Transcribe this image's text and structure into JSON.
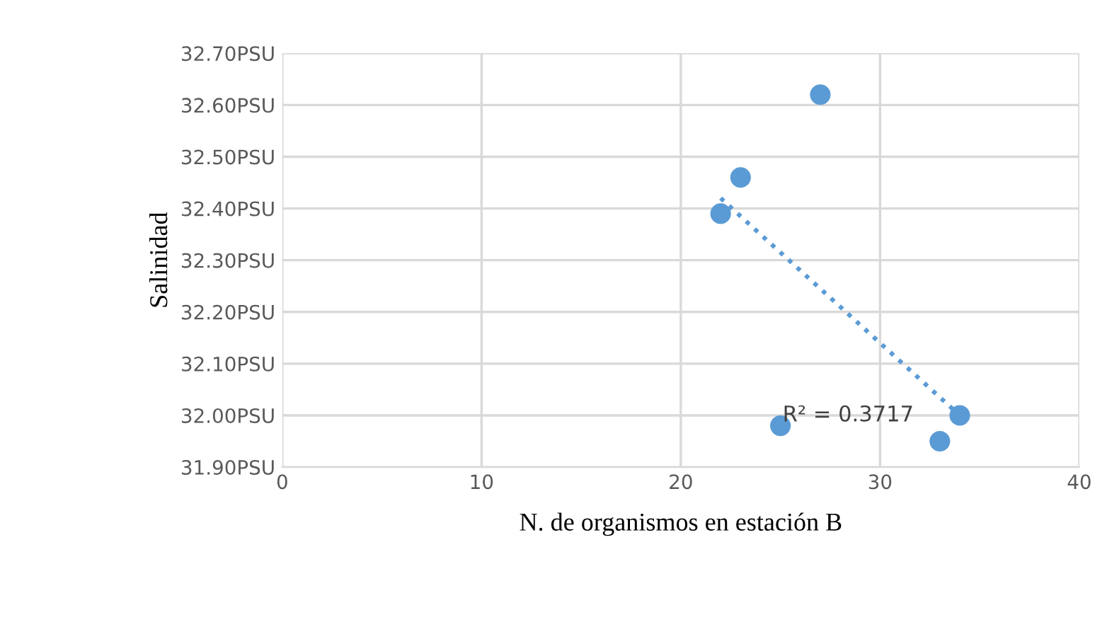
{
  "chart_data": {
    "type": "scatter",
    "xlabel": "N. de organismos en estación B",
    "ylabel": "Salinidad",
    "series": [
      {
        "color": "#5b9bd5",
        "marker": "circle",
        "x": [
          27,
          23,
          22,
          25,
          33,
          34
        ],
        "values": [
          32.62,
          32.46,
          32.39,
          31.98,
          31.95,
          32.0
        ]
      },
      {
        "type": "line",
        "color": "#5b9bd5",
        "line_style": "dotted",
        "marker": "none",
        "x": [
          22,
          34
        ],
        "values": [
          32.42,
          32.0
        ]
      }
    ],
    "annotations": [
      "R² = 0.3717"
    ],
    "xlim": [
      0,
      40
    ],
    "xticks": [
      0,
      10,
      20,
      30,
      40
    ],
    "ylim": [
      31.9,
      32.7
    ],
    "yticks": [
      {
        "value": 31.9,
        "label": "31.90PSU"
      },
      {
        "value": 32.0,
        "label": "32.00PSU"
      },
      {
        "value": 32.1,
        "label": "32.10PSU"
      },
      {
        "value": 32.2,
        "label": "32.20PSU"
      },
      {
        "value": 32.3,
        "label": "32.30PSU"
      },
      {
        "value": 32.4,
        "label": "32.40PSU"
      },
      {
        "value": 32.5,
        "label": "32.50PSU"
      },
      {
        "value": 32.6,
        "label": "32.60PSU"
      },
      {
        "value": 32.7,
        "label": "32.70PSU"
      }
    ],
    "grid": true
  }
}
